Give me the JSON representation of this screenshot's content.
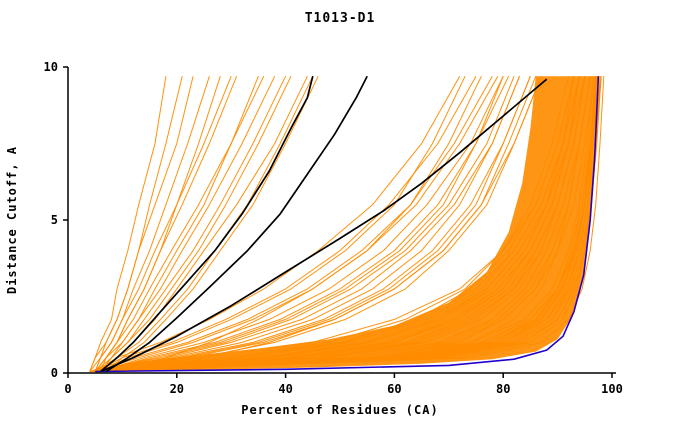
{
  "chart_data": {
    "type": "line",
    "title": "T1013-D1",
    "xlabel": "Percent of Residues (CA)",
    "ylabel": "Distance Cutoff, A",
    "xlim": [
      0,
      100
    ],
    "ylim": [
      0,
      10
    ],
    "x_ticks": [
      0,
      20,
      40,
      60,
      80,
      100
    ],
    "y_ticks": [
      0,
      5,
      10
    ],
    "grid": false,
    "legend": "none",
    "colors": {
      "ensemble": "#FF8C00",
      "highlight": "#000000",
      "best": "#2200CC",
      "axis": "#000000"
    },
    "curve_y": [
      0.05,
      0.5,
      1,
      1.75,
      2.75,
      4,
      5.5,
      7.5,
      9.7
    ],
    "ensemble_curves": [
      [
        5,
        40,
        58,
        70,
        79,
        85,
        89,
        92,
        94
      ],
      [
        6,
        48,
        64,
        74,
        82,
        87,
        90,
        93,
        95
      ],
      [
        4,
        35,
        55,
        68,
        77,
        83,
        88,
        91,
        93
      ],
      [
        5,
        52,
        68,
        78,
        84,
        88,
        91,
        94,
        96
      ],
      [
        7,
        44,
        60,
        71,
        80,
        85,
        89,
        92,
        94
      ],
      [
        5,
        30,
        50,
        64,
        74,
        81,
        86,
        90,
        93
      ],
      [
        6,
        55,
        70,
        79,
        85,
        89,
        92,
        94,
        96
      ],
      [
        4,
        25,
        45,
        60,
        72,
        80,
        86,
        90,
        93
      ],
      [
        5,
        60,
        74,
        82,
        87,
        90,
        93,
        95,
        97
      ],
      [
        6,
        38,
        56,
        69,
        78,
        84,
        88,
        92,
        94
      ],
      [
        5,
        46,
        63,
        73,
        81,
        86,
        90,
        93,
        95
      ],
      [
        4,
        33,
        52,
        66,
        76,
        82,
        87,
        91,
        94
      ],
      [
        6,
        50,
        66,
        76,
        83,
        87,
        90,
        93,
        95
      ],
      [
        5,
        42,
        60,
        72,
        80,
        85,
        89,
        92,
        95
      ],
      [
        7,
        57,
        71,
        80,
        86,
        89,
        92,
        94,
        96
      ],
      [
        5,
        28,
        48,
        62,
        73,
        80,
        85,
        89,
        92
      ],
      [
        4,
        36,
        54,
        67,
        77,
        83,
        88,
        91,
        94
      ],
      [
        6,
        44,
        62,
        73,
        81,
        86,
        90,
        93,
        95
      ],
      [
        5,
        48,
        65,
        75,
        82,
        87,
        90,
        93,
        95
      ],
      [
        6,
        53,
        69,
        78,
        84,
        88,
        91,
        94,
        96
      ],
      [
        5,
        31,
        51,
        65,
        75,
        82,
        87,
        91,
        93
      ],
      [
        4,
        41,
        59,
        71,
        79,
        85,
        89,
        92,
        94
      ],
      [
        6,
        47,
        64,
        74,
        82,
        86,
        90,
        93,
        95
      ],
      [
        5,
        58,
        72,
        80,
        86,
        90,
        92,
        94,
        96
      ],
      [
        5,
        37,
        55,
        68,
        78,
        84,
        88,
        92,
        94
      ],
      [
        5,
        20,
        34,
        47,
        58,
        67,
        74,
        80,
        85
      ],
      [
        6,
        15,
        27,
        39,
        50,
        60,
        68,
        75,
        81
      ],
      [
        5,
        24,
        38,
        51,
        62,
        70,
        77,
        82,
        87
      ],
      [
        4,
        12,
        22,
        33,
        44,
        54,
        63,
        71,
        78
      ],
      [
        6,
        18,
        30,
        43,
        54,
        63,
        71,
        78,
        83
      ],
      [
        5,
        10,
        19,
        29,
        40,
        50,
        59,
        68,
        75
      ],
      [
        5,
        22,
        36,
        49,
        60,
        69,
        76,
        81,
        86
      ],
      [
        6,
        14,
        25,
        37,
        48,
        58,
        66,
        74,
        80
      ],
      [
        4,
        17,
        29,
        41,
        52,
        62,
        70,
        77,
        82
      ],
      [
        5,
        9,
        17,
        26,
        36,
        46,
        56,
        65,
        72
      ],
      [
        5,
        7,
        9,
        12,
        15,
        19,
        24,
        30,
        36
      ],
      [
        6,
        8,
        11,
        14,
        18,
        23,
        28,
        34,
        40
      ],
      [
        4,
        6,
        8,
        10,
        13,
        16,
        20,
        25,
        30
      ],
      [
        5,
        7,
        10,
        13,
        17,
        21,
        26,
        32,
        38
      ],
      [
        6,
        9,
        12,
        16,
        20,
        25,
        31,
        38,
        44
      ],
      [
        5,
        6,
        8,
        10,
        12,
        15,
        18,
        22,
        26
      ],
      [
        4,
        5,
        7,
        9,
        11,
        13,
        16,
        20,
        23
      ],
      [
        6,
        8,
        10,
        13,
        16,
        20,
        25,
        30,
        35
      ],
      [
        5,
        7,
        9,
        11,
        14,
        17,
        21,
        26,
        31
      ],
      [
        7,
        10,
        14,
        18,
        23,
        28,
        34,
        40,
        46
      ],
      [
        5,
        6,
        7,
        9,
        11,
        13,
        15,
        18,
        21
      ],
      [
        4,
        5,
        6,
        8,
        9,
        11,
        13,
        16,
        18
      ],
      [
        6,
        7,
        9,
        11,
        14,
        17,
        20,
        24,
        28
      ],
      [
        5,
        8,
        11,
        15,
        19,
        24,
        29,
        35,
        41
      ],
      [
        6,
        9,
        13,
        17,
        22,
        27,
        33,
        39,
        45
      ],
      [
        5,
        13,
        23,
        34,
        45,
        55,
        63,
        70,
        76
      ],
      [
        6,
        11,
        20,
        30,
        41,
        51,
        60,
        67,
        73
      ],
      [
        5,
        16,
        28,
        40,
        51,
        61,
        69,
        75,
        80
      ],
      [
        4,
        19,
        32,
        45,
        56,
        65,
        72,
        78,
        83
      ],
      [
        6,
        21,
        35,
        48,
        59,
        68,
        75,
        80,
        85
      ],
      [
        12,
        18,
        26,
        35,
        45,
        55,
        64,
        72,
        79
      ],
      [
        15,
        25,
        37,
        49,
        60,
        69,
        76,
        82,
        87
      ],
      [
        5,
        62,
        78,
        86,
        90,
        93,
        95,
        96,
        97
      ],
      [
        6,
        66,
        81,
        88,
        92,
        94,
        95.5,
        96.5,
        97.5
      ],
      [
        5,
        58,
        76,
        85,
        90,
        92.5,
        94.5,
        96,
        97
      ],
      [
        4,
        70,
        84,
        90,
        93,
        95,
        96,
        97,
        98
      ],
      [
        6,
        64,
        80,
        87,
        91,
        93.5,
        95,
        96.5,
        97.5
      ],
      [
        5,
        68,
        82,
        89,
        92,
        94,
        95.5,
        97,
        98
      ],
      [
        5,
        60,
        77,
        86,
        90.5,
        93,
        95,
        96,
        97
      ],
      [
        6,
        72,
        85,
        91,
        93.5,
        95,
        96,
        97,
        98
      ],
      [
        4,
        56,
        74,
        84,
        89,
        92,
        94,
        95.5,
        96.5
      ],
      [
        5,
        65,
        80,
        88,
        91.5,
        94,
        95.5,
        96.5,
        97.5
      ],
      [
        6,
        59,
        76,
        85,
        90,
        92.5,
        94.5,
        96,
        97
      ],
      [
        5,
        67,
        82,
        89,
        92.5,
        94.5,
        96,
        97,
        97.8
      ],
      [
        4,
        63,
        79,
        87,
        91,
        93.5,
        95,
        96.3,
        97.3
      ],
      [
        6,
        69,
        83,
        90,
        93,
        95,
        96.2,
        97.2,
        98
      ],
      [
        5,
        61,
        78,
        86.5,
        90.8,
        93.2,
        95,
        96.2,
        97.2
      ],
      [
        5,
        74,
        87,
        92,
        94.5,
        96,
        97,
        97.8,
        98.5
      ]
    ],
    "highlight_curves": [
      [
        [
          6,
          0.05
        ],
        [
          9,
          0.5
        ],
        [
          12,
          1
        ],
        [
          16,
          1.8
        ],
        [
          21,
          2.8
        ],
        [
          27,
          4
        ],
        [
          32,
          5.2
        ],
        [
          37,
          6.6
        ],
        [
          41,
          8
        ],
        [
          44,
          9
        ],
        [
          45,
          9.7
        ]
      ],
      [
        [
          7,
          0.05
        ],
        [
          11,
          0.5
        ],
        [
          15,
          1
        ],
        [
          20,
          1.8
        ],
        [
          26,
          2.8
        ],
        [
          33,
          4
        ],
        [
          39,
          5.2
        ],
        [
          44,
          6.5
        ],
        [
          49,
          7.8
        ],
        [
          53,
          9
        ],
        [
          55,
          9.7
        ]
      ],
      [
        [
          6,
          0.05
        ],
        [
          12,
          0.5
        ],
        [
          20,
          1.2
        ],
        [
          30,
          2.2
        ],
        [
          40,
          3.3
        ],
        [
          50,
          4.4
        ],
        [
          58,
          5.3
        ],
        [
          65,
          6.2
        ],
        [
          72,
          7.2
        ],
        [
          80,
          8.4
        ],
        [
          86,
          9.3
        ],
        [
          88,
          9.6
        ]
      ]
    ],
    "best_curve": [
      [
        5,
        0.05
      ],
      [
        40,
        0.12
      ],
      [
        70,
        0.25
      ],
      [
        82,
        0.45
      ],
      [
        88,
        0.75
      ],
      [
        91,
        1.2
      ],
      [
        93,
        2
      ],
      [
        94.8,
        3.2
      ],
      [
        96,
        5
      ],
      [
        96.8,
        7
      ],
      [
        97.5,
        9.7
      ]
    ],
    "density_fill": [
      [
        5,
        0.05
      ],
      [
        25,
        0.1
      ],
      [
        45,
        0.18
      ],
      [
        65,
        0.3
      ],
      [
        78,
        0.45
      ],
      [
        86,
        0.7
      ],
      [
        90,
        1.1
      ],
      [
        92.5,
        1.8
      ],
      [
        94.5,
        3
      ],
      [
        96,
        4.8
      ],
      [
        97,
        7
      ],
      [
        97.6,
        9.7
      ],
      [
        86,
        9.7
      ],
      [
        85,
        8
      ],
      [
        83.5,
        6.2
      ],
      [
        81,
        4.6
      ],
      [
        77,
        3.3
      ],
      [
        70,
        2.3
      ],
      [
        60,
        1.55
      ],
      [
        48,
        1.1
      ],
      [
        35,
        0.8
      ],
      [
        22,
        0.55
      ],
      [
        12,
        0.35
      ],
      [
        6,
        0.15
      ]
    ]
  }
}
